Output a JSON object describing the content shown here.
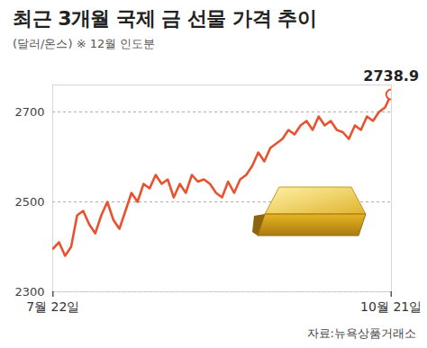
{
  "chart_data": {
    "type": "line",
    "title": "최근 3개월 국제 금 선물 가격 추이",
    "subtitle": "(달러/온스) ※ 12월 인도분",
    "caption": "자료:뉴욕상품거래소",
    "annotation": "2738.9",
    "categories": [
      "7월 22일",
      null,
      null,
      null,
      null,
      null,
      null,
      null,
      null,
      null,
      null,
      null,
      null,
      null,
      null,
      null,
      null,
      null,
      null,
      null,
      null,
      null,
      null,
      null,
      null,
      null,
      null,
      null,
      null,
      null,
      null,
      null,
      null,
      null,
      null,
      null,
      null,
      null,
      null,
      null,
      null,
      null,
      null,
      null,
      null,
      null,
      null,
      null,
      null,
      null,
      null,
      null,
      null,
      null,
      null,
      null,
      "10월 21일"
    ],
    "series": [
      {
        "name": "금 선물",
        "color": "#e8522e",
        "marker": "circle",
        "line_style": "solid",
        "values": [
          2396,
          2410,
          2380,
          2400,
          2470,
          2480,
          2450,
          2430,
          2470,
          2500,
          2460,
          2440,
          2480,
          2520,
          2500,
          2540,
          2530,
          2560,
          2540,
          2550,
          2510,
          2540,
          2520,
          2560,
          2545,
          2550,
          2540,
          2520,
          2510,
          2545,
          2520,
          2550,
          2560,
          2580,
          2610,
          2590,
          2620,
          2630,
          2640,
          2660,
          2650,
          2670,
          2680,
          2660,
          2690,
          2670,
          2680,
          2660,
          2655,
          2640,
          2670,
          2660,
          2690,
          2680,
          2700,
          2710,
          2738.9
        ]
      }
    ],
    "ylim": [
      2300,
      2760
    ],
    "yticks": [
      2300,
      2500,
      2700
    ],
    "grid": true
  }
}
